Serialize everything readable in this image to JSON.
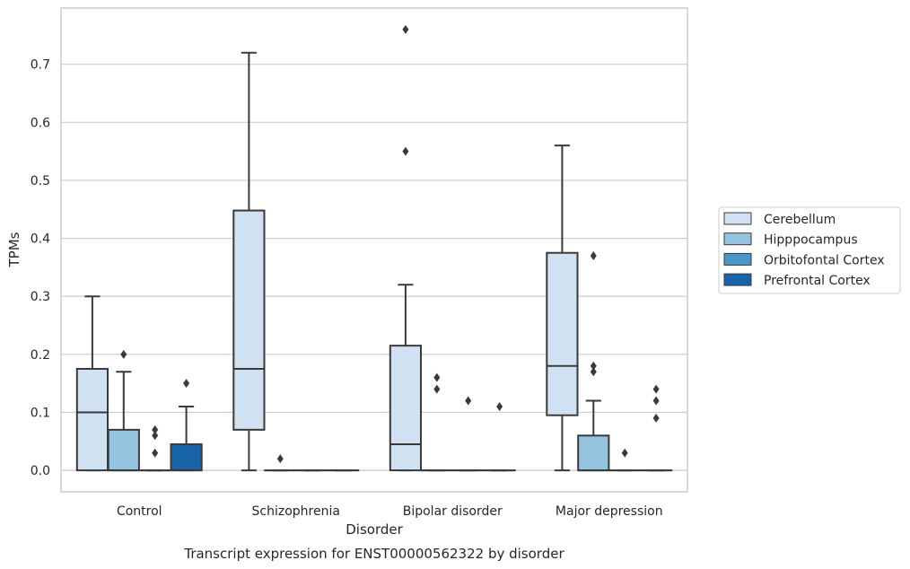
{
  "chart_data": {
    "type": "box",
    "title": "Transcript expression for ENST00000562322 by disorder",
    "xlabel": "Disorder",
    "ylabel": "TPMs",
    "categories": [
      "Control",
      "Schizophrenia",
      "Bipolar disorder",
      "Major depression"
    ],
    "yticks": [
      "0.0",
      "0.1",
      "0.2",
      "0.3",
      "0.4",
      "0.5",
      "0.6",
      "0.7"
    ],
    "ylim": [
      -0.037,
      0.797
    ],
    "grid": true,
    "legend_position": "right",
    "series": [
      {
        "name": "Cerebellum",
        "color": "#d0e1f2",
        "boxes": [
          {
            "min": 0.0,
            "q1": 0.0,
            "median": 0.1,
            "q3": 0.175,
            "max": 0.3,
            "outliers": []
          },
          {
            "min": 0.0,
            "q1": 0.07,
            "median": 0.175,
            "q3": 0.448,
            "max": 0.72,
            "outliers": []
          },
          {
            "min": 0.0,
            "q1": 0.0,
            "median": 0.045,
            "q3": 0.215,
            "max": 0.32,
            "outliers": [
              0.55,
              0.76
            ]
          },
          {
            "min": 0.0,
            "q1": 0.095,
            "median": 0.18,
            "q3": 0.375,
            "max": 0.56,
            "outliers": []
          }
        ]
      },
      {
        "name": "Hipppocampus",
        "color": "#94c4df",
        "boxes": [
          {
            "min": 0.0,
            "q1": 0.0,
            "median": 0.0,
            "q3": 0.07,
            "max": 0.17,
            "outliers": [
              0.2
            ]
          },
          {
            "min": 0.0,
            "q1": 0.0,
            "median": 0.0,
            "q3": 0.0,
            "max": 0.0,
            "outliers": [
              0.02
            ]
          },
          {
            "min": 0.0,
            "q1": 0.0,
            "median": 0.0,
            "q3": 0.0,
            "max": 0.0,
            "outliers": [
              0.14,
              0.16
            ]
          },
          {
            "min": 0.0,
            "q1": 0.0,
            "median": 0.0,
            "q3": 0.06,
            "max": 0.12,
            "outliers": [
              0.17,
              0.18,
              0.37
            ]
          }
        ]
      },
      {
        "name": "Orbitofontal Cortex",
        "color": "#4a98c9",
        "boxes": [
          {
            "min": 0.0,
            "q1": 0.0,
            "median": 0.0,
            "q3": 0.0,
            "max": 0.0,
            "outliers": [
              0.03,
              0.06,
              0.07
            ]
          },
          {
            "min": 0.0,
            "q1": 0.0,
            "median": 0.0,
            "q3": 0.0,
            "max": 0.0,
            "outliers": []
          },
          {
            "min": 0.0,
            "q1": 0.0,
            "median": 0.0,
            "q3": 0.0,
            "max": 0.0,
            "outliers": [
              0.12
            ]
          },
          {
            "min": 0.0,
            "q1": 0.0,
            "median": 0.0,
            "q3": 0.0,
            "max": 0.0,
            "outliers": [
              0.03
            ]
          }
        ]
      },
      {
        "name": "Prefrontal Cortex",
        "color": "#1764ab",
        "boxes": [
          {
            "min": 0.0,
            "q1": 0.0,
            "median": 0.0,
            "q3": 0.045,
            "max": 0.11,
            "outliers": [
              0.15
            ]
          },
          {
            "min": 0.0,
            "q1": 0.0,
            "median": 0.0,
            "q3": 0.0,
            "max": 0.0,
            "outliers": []
          },
          {
            "min": 0.0,
            "q1": 0.0,
            "median": 0.0,
            "q3": 0.0,
            "max": 0.0,
            "outliers": [
              0.11
            ]
          },
          {
            "min": 0.0,
            "q1": 0.0,
            "median": 0.0,
            "q3": 0.0,
            "max": 0.0,
            "outliers": [
              0.09,
              0.12,
              0.14
            ]
          }
        ]
      }
    ]
  }
}
